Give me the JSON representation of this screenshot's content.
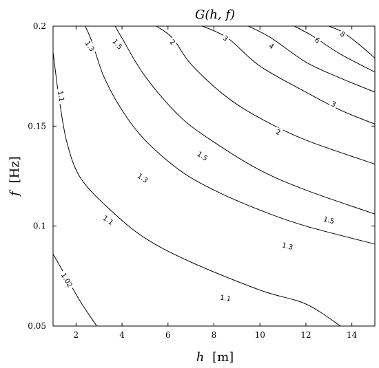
{
  "chart_data": {
    "type": "contour",
    "title": "G(h, f)",
    "xlabel_var": "h",
    "xlabel_unit": "[m]",
    "ylabel_var": "f",
    "ylabel_unit": "[Hz]",
    "xlim": [
      1,
      15
    ],
    "ylim": [
      0.05,
      0.2
    ],
    "xticks": [
      2,
      4,
      6,
      8,
      10,
      12,
      14
    ],
    "yticks": [
      0.05,
      0.1,
      0.15,
      0.2
    ],
    "ytick_labels": [
      "0.05",
      "0.1",
      "0.15",
      "0.2"
    ],
    "grid": false,
    "levels": [
      {
        "label": "1.02",
        "points": [
          [
            1,
            0.086
          ],
          [
            1.6,
            0.074
          ],
          [
            2.2,
            0.062
          ],
          [
            2.9,
            0.05
          ]
        ],
        "label_pos": [
          1.6,
          0.073
        ],
        "label_angle": 60
      },
      {
        "label": "1.1",
        "points": [
          [
            1,
            0.187
          ],
          [
            1.25,
            0.165
          ],
          [
            1.6,
            0.142
          ],
          [
            2.2,
            0.124
          ],
          [
            3.5,
            0.108
          ],
          [
            5,
            0.094
          ],
          [
            7,
            0.082
          ],
          [
            10,
            0.068
          ],
          [
            12,
            0.061
          ],
          [
            13.5,
            0.05
          ]
        ],
        "label_pos": [
          1.35,
          0.165
        ],
        "label_angle": 80
      },
      {
        "label": "1.1",
        "points": [
          [
            1,
            0.187
          ],
          [
            1.25,
            0.165
          ],
          [
            1.6,
            0.142
          ],
          [
            2.2,
            0.124
          ],
          [
            3.5,
            0.108
          ],
          [
            5,
            0.094
          ],
          [
            7,
            0.082
          ],
          [
            10,
            0.068
          ],
          [
            12,
            0.061
          ],
          [
            13.5,
            0.05
          ]
        ],
        "label_pos": [
          3.4,
          0.103
        ],
        "label_angle": 35
      },
      {
        "label": "1.1",
        "points": [
          [
            1,
            0.187
          ],
          [
            1.25,
            0.165
          ],
          [
            1.6,
            0.142
          ],
          [
            2.2,
            0.124
          ],
          [
            3.5,
            0.108
          ],
          [
            5,
            0.094
          ],
          [
            7,
            0.082
          ],
          [
            10,
            0.068
          ],
          [
            12,
            0.061
          ],
          [
            13.5,
            0.05
          ]
        ],
        "label_pos": [
          8.5,
          0.064
        ],
        "label_angle": 10
      },
      {
        "label": "1.3",
        "points": [
          [
            2.4,
            0.2
          ],
          [
            2.7,
            0.192
          ],
          [
            3.2,
            0.175
          ],
          [
            4,
            0.158
          ],
          [
            5,
            0.143
          ],
          [
            6.5,
            0.128
          ],
          [
            8,
            0.118
          ],
          [
            10,
            0.108
          ],
          [
            12,
            0.1
          ],
          [
            15,
            0.091
          ]
        ],
        "label_pos": [
          2.6,
          0.19
        ],
        "label_angle": 55
      },
      {
        "label": "1.3",
        "points": [
          [
            2.4,
            0.2
          ],
          [
            2.7,
            0.192
          ],
          [
            3.2,
            0.175
          ],
          [
            4,
            0.158
          ],
          [
            5,
            0.143
          ],
          [
            6.5,
            0.128
          ],
          [
            8,
            0.118
          ],
          [
            10,
            0.108
          ],
          [
            12,
            0.1
          ],
          [
            15,
            0.091
          ]
        ],
        "label_pos": [
          4.9,
          0.124
        ],
        "label_angle": 35
      },
      {
        "label": "1.3",
        "points": [
          [
            2.4,
            0.2
          ],
          [
            2.7,
            0.192
          ],
          [
            3.2,
            0.175
          ],
          [
            4,
            0.158
          ],
          [
            5,
            0.143
          ],
          [
            6.5,
            0.128
          ],
          [
            8,
            0.118
          ],
          [
            10,
            0.108
          ],
          [
            12,
            0.1
          ],
          [
            15,
            0.091
          ]
        ],
        "label_pos": [
          11.2,
          0.09
        ],
        "label_angle": 15
      },
      {
        "label": "1.5",
        "points": [
          [
            3.7,
            0.2
          ],
          [
            4,
            0.194
          ],
          [
            5,
            0.175
          ],
          [
            6.5,
            0.155
          ],
          [
            8,
            0.142
          ],
          [
            10,
            0.128
          ],
          [
            12,
            0.118
          ],
          [
            15,
            0.106
          ]
        ],
        "label_pos": [
          3.8,
          0.191
        ],
        "label_angle": 50
      },
      {
        "label": "1.5",
        "points": [
          [
            3.7,
            0.2
          ],
          [
            4,
            0.194
          ],
          [
            5,
            0.175
          ],
          [
            6.5,
            0.155
          ],
          [
            8,
            0.142
          ],
          [
            10,
            0.128
          ],
          [
            12,
            0.118
          ],
          [
            15,
            0.106
          ]
        ],
        "label_pos": [
          7.5,
          0.135
        ],
        "label_angle": 33
      },
      {
        "label": "1.5",
        "points": [
          [
            3.7,
            0.2
          ],
          [
            4,
            0.194
          ],
          [
            5,
            0.175
          ],
          [
            6.5,
            0.155
          ],
          [
            8,
            0.142
          ],
          [
            10,
            0.128
          ],
          [
            12,
            0.118
          ],
          [
            15,
            0.106
          ]
        ],
        "label_pos": [
          13.0,
          0.103
        ],
        "label_angle": 15
      },
      {
        "label": "2",
        "points": [
          [
            5.5,
            0.2
          ],
          [
            6.2,
            0.194
          ],
          [
            7,
            0.181
          ],
          [
            8.5,
            0.165
          ],
          [
            10,
            0.154
          ],
          [
            12,
            0.143
          ],
          [
            15,
            0.131
          ]
        ],
        "label_pos": [
          6.2,
          0.192
        ],
        "label_angle": 45
      },
      {
        "label": "2",
        "points": [
          [
            5.5,
            0.2
          ],
          [
            6.2,
            0.194
          ],
          [
            7,
            0.181
          ],
          [
            8.5,
            0.165
          ],
          [
            10,
            0.154
          ],
          [
            12,
            0.143
          ],
          [
            15,
            0.131
          ]
        ],
        "label_pos": [
          10.8,
          0.147
        ],
        "label_angle": 22
      },
      {
        "label": "3",
        "points": [
          [
            7.5,
            0.2
          ],
          [
            8.6,
            0.194
          ],
          [
            10,
            0.18
          ],
          [
            12,
            0.167
          ],
          [
            13.5,
            0.158
          ],
          [
            15,
            0.151
          ]
        ],
        "label_pos": [
          8.5,
          0.194
        ],
        "label_angle": 40
      },
      {
        "label": "3",
        "points": [
          [
            7.5,
            0.2
          ],
          [
            8.6,
            0.194
          ],
          [
            10,
            0.18
          ],
          [
            12,
            0.167
          ],
          [
            13.5,
            0.158
          ],
          [
            15,
            0.151
          ]
        ],
        "label_pos": [
          13.2,
          0.161
        ],
        "label_angle": 25
      },
      {
        "label": "4",
        "points": [
          [
            9.5,
            0.2
          ],
          [
            10.5,
            0.194
          ],
          [
            12,
            0.182
          ],
          [
            13.5,
            0.174
          ],
          [
            15,
            0.167
          ]
        ],
        "label_pos": [
          10.5,
          0.19
        ],
        "label_angle": 35
      },
      {
        "label": "6",
        "points": [
          [
            11.5,
            0.2
          ],
          [
            12.3,
            0.195
          ],
          [
            13.5,
            0.186
          ],
          [
            15,
            0.177
          ]
        ],
        "label_pos": [
          12.5,
          0.193
        ],
        "label_angle": 35
      },
      {
        "label": "8",
        "points": [
          [
            13,
            0.2
          ],
          [
            13.6,
            0.197
          ],
          [
            14.3,
            0.191
          ],
          [
            15,
            0.184
          ]
        ],
        "label_pos": [
          13.6,
          0.196
        ],
        "label_angle": 35
      }
    ]
  }
}
